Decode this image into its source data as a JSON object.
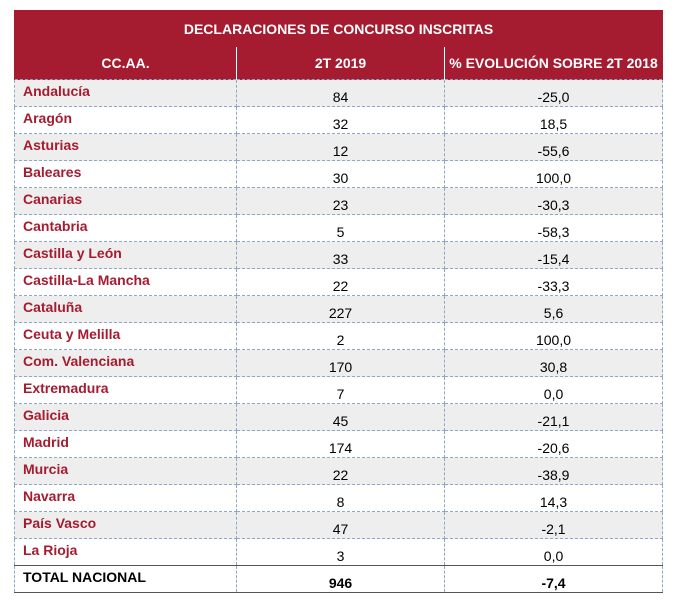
{
  "table": {
    "title": "DECLARACIONES DE CONCURSO INSCRITAS",
    "headers": [
      "CC.AA.",
      "2T 2019",
      "% EVOLUCIÓN SOBRE 2T 2018"
    ],
    "rows": [
      [
        "Andalucía",
        "84",
        "-25,0"
      ],
      [
        "Aragón",
        "32",
        "18,5"
      ],
      [
        "Asturias",
        "12",
        "-55,6"
      ],
      [
        "Baleares",
        "30",
        "100,0"
      ],
      [
        "Canarias",
        "23",
        "-30,3"
      ],
      [
        "Cantabria",
        "5",
        "-58,3"
      ],
      [
        "Castilla y León",
        "33",
        "-15,4"
      ],
      [
        "Castilla-La Mancha",
        "22",
        "-33,3"
      ],
      [
        "Cataluña",
        "227",
        "5,6"
      ],
      [
        "Ceuta y Melilla",
        "2",
        "100,0"
      ],
      [
        "Com. Valenciana",
        "170",
        "30,8"
      ],
      [
        "Extremadura",
        "7",
        "0,0"
      ],
      [
        "Galicia",
        "45",
        "-21,1"
      ],
      [
        "Madrid",
        "174",
        "-20,6"
      ],
      [
        "Murcia",
        "22",
        "-38,9"
      ],
      [
        "Navarra",
        "8",
        "14,3"
      ],
      [
        "País Vasco",
        "47",
        "-2,1"
      ],
      [
        "La Rioja",
        "3",
        "0,0"
      ]
    ],
    "total": [
      "TOTAL NACIONAL",
      "946",
      "-7,4"
    ]
  },
  "colors": {
    "header_bg": "#a51c30",
    "name_text": "#a51c30",
    "stripe": "#eeeeee",
    "grid": "#8fa6c8"
  }
}
